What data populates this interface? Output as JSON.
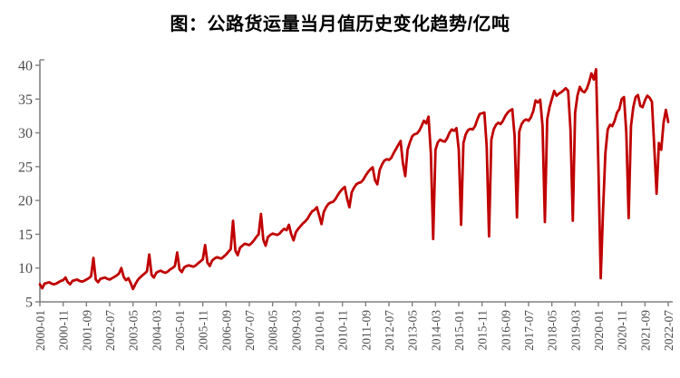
{
  "title": "图：公路货运量当月值历史变化趋势/亿吨",
  "chart_data": {
    "type": "line",
    "title": "图：公路货运量当月值历史变化趋势/亿吨",
    "unit": "亿吨",
    "x_monthly_start": "2000-01",
    "x_monthly_end": "2022-07",
    "x_tick_interval_months": 10,
    "x_tick_labels": [
      "2000-01",
      "2000-11",
      "2001-09",
      "2002-07",
      "2003-05",
      "2004-03",
      "2005-01",
      "2005-11",
      "2006-09",
      "2007-07",
      "2008-05",
      "2009-03",
      "2010-01",
      "2010-11",
      "2011-09",
      "2012-07",
      "2013-05",
      "2014-03",
      "2015-01",
      "2015-11",
      "2016-09",
      "2017-07",
      "2018-05",
      "2019-03",
      "2020-01",
      "2020-11",
      "2021-09",
      "2022-07"
    ],
    "ylim": [
      5,
      40
    ],
    "yticks": [
      5,
      10,
      15,
      20,
      25,
      30,
      35,
      40
    ],
    "grid": false,
    "legend_position": "none",
    "line_color": "#C00000",
    "axis_color": "#808080",
    "tick_label_color": "#4d4d4d",
    "series": [
      {
        "name": "公路货运量当月值",
        "values": [
          7.6,
          7.0,
          7.7,
          7.8,
          7.9,
          7.7,
          7.6,
          7.7,
          7.9,
          8.1,
          8.2,
          8.6,
          7.9,
          7.6,
          8.1,
          8.2,
          8.3,
          8.1,
          8.0,
          8.1,
          8.3,
          8.5,
          8.8,
          11.5,
          8.3,
          7.9,
          8.4,
          8.5,
          8.6,
          8.4,
          8.3,
          8.5,
          8.7,
          8.9,
          9.2,
          10.0,
          8.7,
          8.2,
          8.5,
          7.8,
          6.9,
          7.6,
          8.2,
          8.6,
          8.9,
          9.2,
          9.5,
          12.0,
          9.0,
          8.6,
          9.3,
          9.5,
          9.6,
          9.4,
          9.3,
          9.5,
          9.8,
          10.0,
          10.3,
          12.3,
          9.8,
          9.4,
          10.1,
          10.3,
          10.4,
          10.3,
          10.2,
          10.4,
          10.7,
          11.0,
          11.3,
          13.4,
          10.8,
          10.3,
          11.1,
          11.4,
          11.6,
          11.5,
          11.4,
          11.7,
          12.0,
          12.4,
          12.8,
          17.0,
          12.6,
          11.9,
          13.0,
          13.3,
          13.6,
          13.5,
          13.4,
          13.7,
          14.1,
          14.6,
          15.0,
          18.0,
          14.2,
          13.3,
          14.6,
          14.9,
          15.1,
          15.0,
          14.9,
          15.1,
          15.5,
          15.8,
          15.6,
          16.4,
          15.0,
          14.1,
          15.3,
          15.8,
          16.2,
          16.6,
          16.9,
          17.3,
          17.9,
          18.4,
          18.6,
          19.0,
          17.8,
          16.5,
          18.3,
          19.0,
          19.5,
          19.7,
          19.8,
          20.2,
          20.8,
          21.3,
          21.7,
          22.0,
          20.3,
          19.0,
          21.2,
          21.9,
          22.4,
          22.6,
          22.7,
          23.1,
          23.7,
          24.2,
          24.6,
          24.9,
          23.0,
          22.4,
          24.5,
          25.3,
          25.9,
          26.1,
          26.0,
          26.3,
          27.0,
          27.6,
          28.2,
          28.8,
          25.5,
          23.6,
          27.5,
          28.6,
          29.5,
          29.8,
          29.9,
          30.3,
          31.0,
          31.8,
          31.4,
          32.4,
          27.0,
          14.3,
          27.5,
          28.6,
          29.0,
          28.8,
          28.7,
          29.2,
          30.0,
          30.5,
          30.3,
          30.7,
          27.5,
          16.4,
          28.5,
          29.8,
          30.4,
          30.6,
          30.5,
          31.0,
          32.0,
          32.8,
          32.9,
          33.0,
          28.0,
          14.7,
          29.0,
          30.5,
          31.2,
          31.5,
          31.3,
          31.8,
          32.5,
          33.0,
          33.3,
          33.5,
          29.5,
          17.5,
          30.2,
          31.3,
          31.8,
          32.0,
          31.8,
          32.3,
          33.2,
          34.8,
          34.5,
          34.9,
          31.0,
          16.8,
          32.0,
          33.8,
          35.0,
          36.2,
          35.5,
          35.8,
          36.0,
          36.3,
          36.6,
          36.2,
          30.5,
          17.0,
          33.0,
          35.5,
          36.8,
          36.2,
          36.0,
          36.5,
          37.5,
          38.8,
          37.9,
          39.4,
          25.0,
          8.5,
          18.5,
          27.0,
          30.5,
          31.2,
          31.0,
          31.8,
          33.0,
          33.5,
          35.0,
          35.3,
          30.0,
          17.4,
          31.0,
          33.8,
          35.3,
          35.6,
          34.0,
          33.8,
          34.8,
          35.5,
          35.2,
          34.6,
          28.0,
          21.0,
          28.5,
          27.5,
          31.5,
          33.4,
          31.6
        ]
      }
    ]
  }
}
